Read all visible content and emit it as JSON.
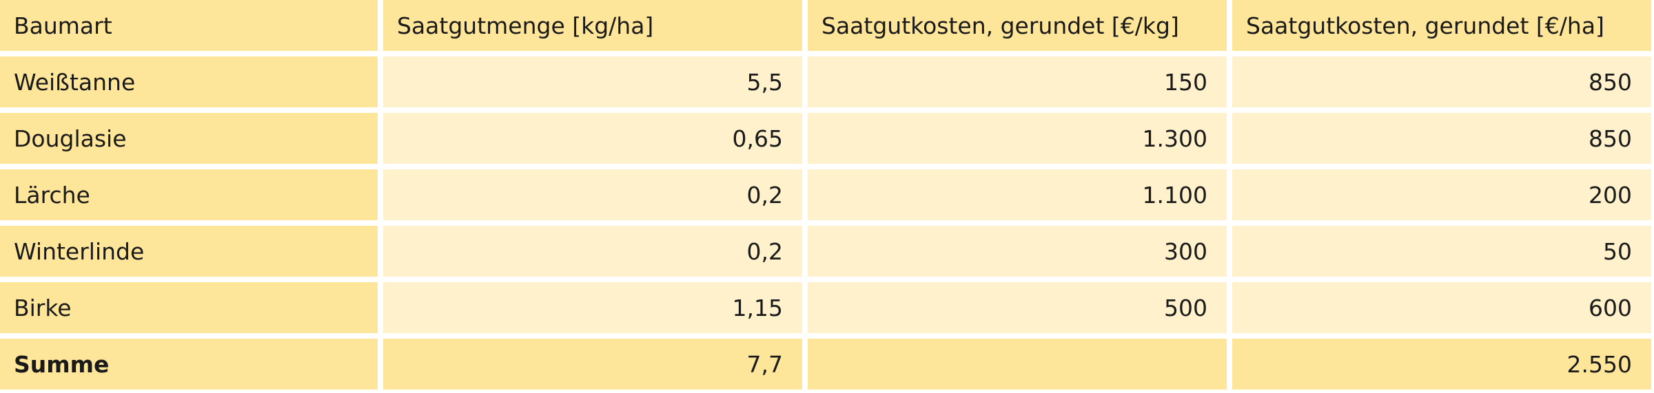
{
  "table": {
    "header": [
      "Baumart",
      "Saatgutmenge [kg/ha]",
      "Saatgutkosten, gerundet [€/kg]",
      "Saatgutkosten, gerundet [€/ha]"
    ],
    "rows": [
      [
        "Weißtanne",
        "5,5",
        "150",
        "850"
      ],
      [
        "Douglasie",
        "0,65",
        "1.300",
        "850"
      ],
      [
        "Lärche",
        "0,2",
        "1.100",
        "200"
      ],
      [
        "Winterlinde",
        "0,2",
        "300",
        "50"
      ],
      [
        "Birke",
        "1,15",
        "500",
        "600"
      ]
    ],
    "footer": [
      "Summe",
      "7,7",
      null,
      "2.550"
    ]
  }
}
